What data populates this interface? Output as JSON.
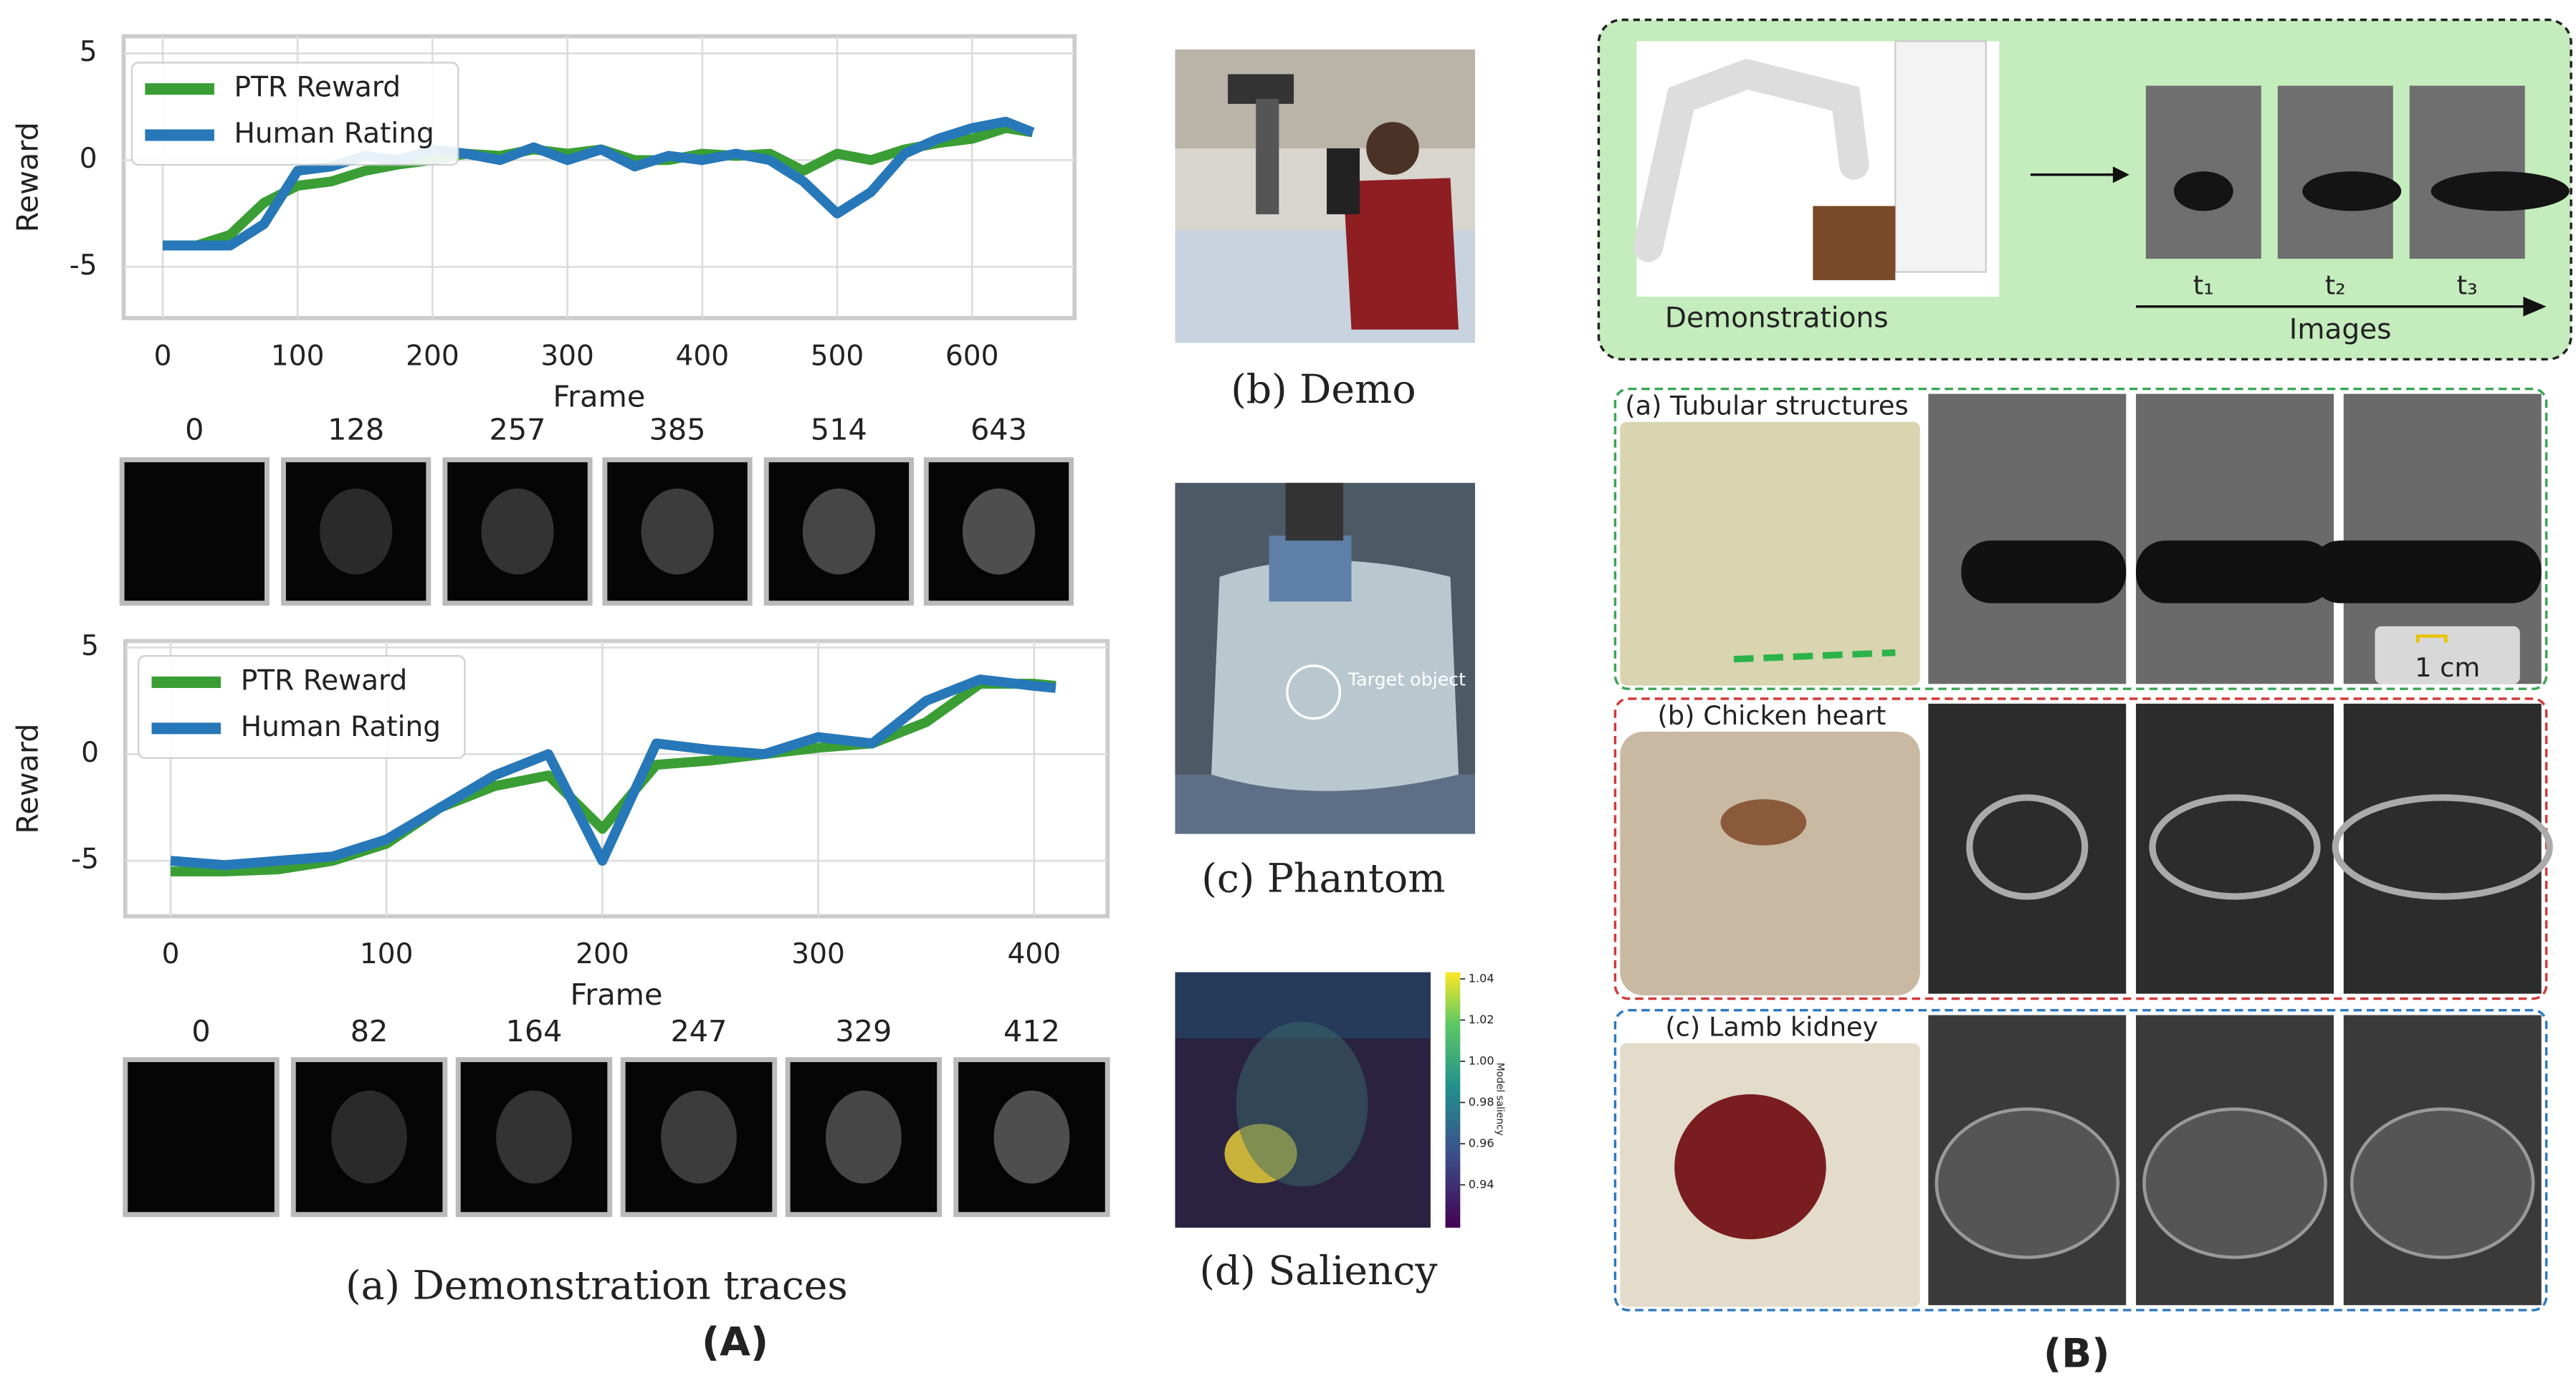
{
  "chart_data": [
    {
      "type": "line",
      "x_label": "Frame",
      "y_label": "Reward",
      "legend": "upper left",
      "grid": true,
      "x": [
        0,
        25,
        50,
        75,
        100,
        125,
        150,
        175,
        200,
        225,
        250,
        275,
        300,
        325,
        350,
        375,
        400,
        425,
        450,
        475,
        500,
        525,
        550,
        575,
        600,
        625,
        645
      ],
      "series": [
        {
          "name": "PTR Reward",
          "color": "#3a9e34",
          "values": [
            -4,
            -4,
            -3.5,
            -2,
            -1.2,
            -1,
            -0.5,
            -0.2,
            0,
            0.3,
            0.2,
            0.5,
            0.3,
            0.5,
            0,
            0,
            0.3,
            0.2,
            0.3,
            -0.5,
            0.3,
            0,
            0.5,
            0.8,
            1,
            1.5,
            1.3
          ]
        },
        {
          "name": "Human Rating",
          "color": "#2778b8",
          "values": [
            -4,
            -4,
            -4,
            -3,
            -0.5,
            -0.3,
            0.2,
            0,
            0.5,
            0.3,
            0,
            0.6,
            0,
            0.5,
            -0.3,
            0.2,
            0,
            0.3,
            0,
            -1,
            -2.5,
            -1.5,
            0.3,
            1,
            1.5,
            1.8,
            1.3
          ]
        }
      ],
      "xlim": [
        -29,
        676
      ],
      "ylim": [
        -7.4,
        5.8
      ],
      "xticks": [
        0,
        100,
        200,
        300,
        400,
        500,
        600
      ],
      "yticks": [
        -5,
        0,
        5
      ],
      "thumbnail_frames": [
        0,
        128,
        257,
        385,
        514,
        643
      ]
    },
    {
      "type": "line",
      "x_label": "Frame",
      "y_label": "Reward",
      "legend": "upper left",
      "grid": true,
      "x": [
        0,
        25,
        50,
        75,
        100,
        125,
        150,
        175,
        200,
        225,
        250,
        275,
        300,
        325,
        350,
        375,
        400,
        410
      ],
      "series": [
        {
          "name": "PTR Reward",
          "color": "#3a9e34",
          "values": [
            -5.5,
            -5.5,
            -5.4,
            -5,
            -4.2,
            -2.5,
            -1.5,
            -1,
            -3.5,
            -0.5,
            -0.3,
            0,
            0.3,
            0.5,
            1.5,
            3.3,
            3.3,
            3.2
          ]
        },
        {
          "name": "Human Rating",
          "color": "#2778b8",
          "values": [
            -5,
            -5.2,
            -5,
            -4.8,
            -4,
            -2.5,
            -1,
            0,
            -5,
            0.5,
            0.2,
            0,
            0.8,
            0.5,
            2.5,
            3.5,
            3.2,
            3.1
          ]
        }
      ],
      "xlim": [
        -21,
        434
      ],
      "ylim": [
        -7.6,
        5.3
      ],
      "xticks": [
        0,
        100,
        200,
        300,
        400
      ],
      "yticks": [
        -5,
        0,
        5
      ],
      "thumbnail_frames": [
        0,
        82,
        164,
        247,
        329,
        412
      ]
    }
  ],
  "panel_a": {
    "caption": "(a) Demonstration traces",
    "label": "(A)"
  },
  "demo": {
    "caption": "(b) Demo"
  },
  "phantom": {
    "caption": "(c) Phantom",
    "annotation": "Target object"
  },
  "saliency": {
    "caption": "(d) Saliency",
    "colorbar_label": "Model saliency",
    "colorbar_ticks": [
      "1.04",
      "1.02",
      "1.00",
      "0.98",
      "0.96",
      "0.94"
    ]
  },
  "panel_b": {
    "label": "(B)",
    "demonstrations": "Demonstrations",
    "images": "Images",
    "time_steps": [
      "t₁",
      "t₂",
      "t₃"
    ],
    "rows": [
      {
        "label": "(a) Tubular structures"
      },
      {
        "label": "(b) Chicken heart"
      },
      {
        "label": "(c) Lamb kidney"
      }
    ],
    "scale": "1 cm"
  }
}
